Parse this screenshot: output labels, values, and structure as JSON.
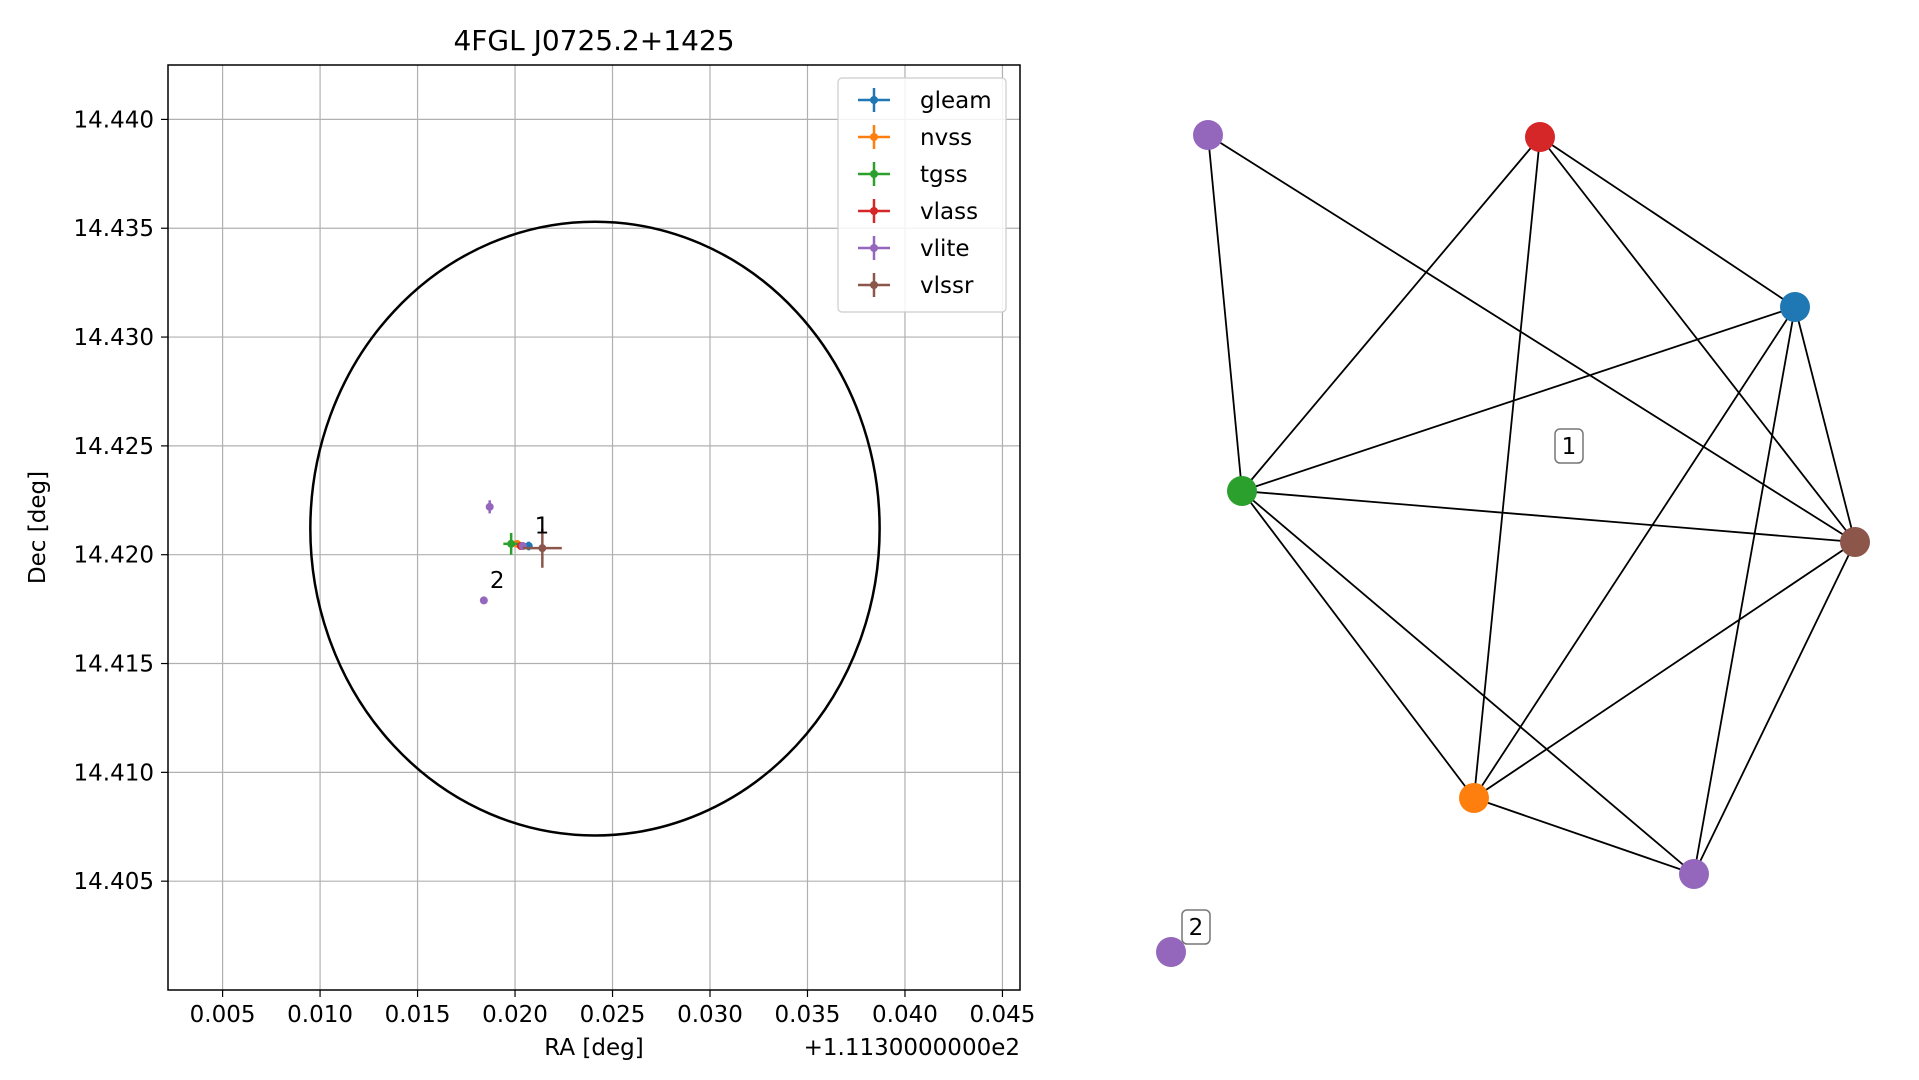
{
  "chart_data": [
    {
      "type": "scatter",
      "title": "4FGL J0725.2+1425",
      "xlabel": "RA [deg]",
      "ylabel": "Dec [deg]",
      "x_offset_label": "+1.1130000000e2",
      "xlim": [
        0.0022,
        0.0459
      ],
      "ylim": [
        14.4,
        14.4425
      ],
      "x_ticks": [
        0.005,
        0.01,
        0.015,
        0.02,
        0.025,
        0.03,
        0.035,
        0.04,
        0.045
      ],
      "x_tick_labels": [
        "0.005",
        "0.010",
        "0.015",
        "0.020",
        "0.025",
        "0.030",
        "0.035",
        "0.040",
        "0.045"
      ],
      "y_ticks": [
        14.405,
        14.41,
        14.415,
        14.42,
        14.425,
        14.43,
        14.435,
        14.44
      ],
      "y_tick_labels": [
        "14.405",
        "14.410",
        "14.415",
        "14.420",
        "14.425",
        "14.430",
        "14.435",
        "14.440"
      ],
      "grid": true,
      "legend_position": "top-right",
      "circle": {
        "center": [
          0.0241,
          14.4212
        ],
        "radius_x": 0.0146,
        "radius_y": 0.0141,
        "color": "#000000"
      },
      "series": [
        {
          "name": "gleam",
          "color": "#1f77b4",
          "points": [
            {
              "x": 0.0207,
              "y": 14.4204,
              "xerr": 0.0002,
              "yerr": 0.0002
            }
          ]
        },
        {
          "name": "nvss",
          "color": "#ff7f0e",
          "points": [
            {
              "x": 0.0201,
              "y": 14.4205,
              "xerr": 0.0001,
              "yerr": 0.0001
            }
          ]
        },
        {
          "name": "tgss",
          "color": "#2ca02c",
          "points": [
            {
              "x": 0.0198,
              "y": 14.4205,
              "xerr": 0.0004,
              "yerr": 0.0005
            }
          ]
        },
        {
          "name": "vlass",
          "color": "#d62728",
          "points": [
            {
              "x": 0.0203,
              "y": 14.4204,
              "xerr": 0.0001,
              "yerr": 0.0001
            }
          ]
        },
        {
          "name": "vlite",
          "color": "#9467bd",
          "points": [
            {
              "x": 0.0187,
              "y": 14.4222,
              "xerr": 0.0001,
              "yerr": 0.0003
            },
            {
              "x": 0.0204,
              "y": 14.4204,
              "xerr": 0.0001,
              "yerr": 0.0001
            },
            {
              "x": 0.0184,
              "y": 14.4179,
              "xerr": 0.0001,
              "yerr": 0.0001
            }
          ]
        },
        {
          "name": "vlssr",
          "color": "#8c564b",
          "points": [
            {
              "x": 0.0214,
              "y": 14.4203,
              "xerr": 0.001,
              "yerr": 0.0009
            }
          ]
        }
      ],
      "annotations": [
        {
          "text": "1",
          "x": 0.0207,
          "y": 14.4207
        },
        {
          "text": "2",
          "x": 0.0184,
          "y": 14.4182
        }
      ]
    },
    {
      "type": "network",
      "nodes": [
        {
          "id": "gleam",
          "color": "#1f77b4"
        },
        {
          "id": "nvss",
          "color": "#ff7f0e"
        },
        {
          "id": "tgss",
          "color": "#2ca02c"
        },
        {
          "id": "vlass",
          "color": "#d62728"
        },
        {
          "id": "vlite_a",
          "color": "#9467bd"
        },
        {
          "id": "vlite_b",
          "color": "#9467bd"
        },
        {
          "id": "vlssr",
          "color": "#8c564b"
        },
        {
          "id": "vlite_c",
          "color": "#9467bd"
        }
      ],
      "edges": [
        [
          "vlite_a",
          "tgss"
        ],
        [
          "vlite_a",
          "vlssr"
        ],
        [
          "vlass",
          "tgss"
        ],
        [
          "vlass",
          "nvss"
        ],
        [
          "vlass",
          "gleam"
        ],
        [
          "vlass",
          "vlssr"
        ],
        [
          "gleam",
          "tgss"
        ],
        [
          "gleam",
          "nvss"
        ],
        [
          "gleam",
          "vlite_b"
        ],
        [
          "gleam",
          "vlssr"
        ],
        [
          "tgss",
          "vlssr"
        ],
        [
          "tgss",
          "nvss"
        ],
        [
          "tgss",
          "vlite_b"
        ],
        [
          "nvss",
          "vlssr"
        ],
        [
          "nvss",
          "vlite_b"
        ],
        [
          "vlite_b",
          "vlssr"
        ]
      ],
      "labels": [
        {
          "text": "1"
        },
        {
          "text": "2"
        }
      ]
    }
  ]
}
